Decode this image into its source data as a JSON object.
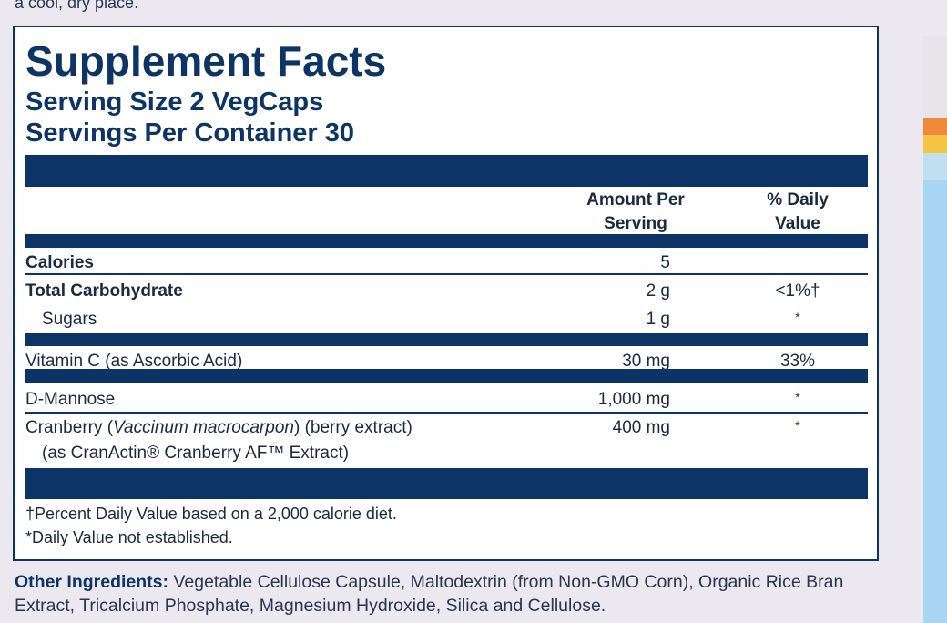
{
  "top_text": "a cool, dry place.",
  "facts": {
    "title": "Supplement Facts",
    "serving_size": "Serving Size 2 VegCaps",
    "servings_per_container": "Servings Per Container 30",
    "header": {
      "amount": [
        "Amount Per",
        "Serving"
      ],
      "daily_value": [
        "% Daily",
        "Value"
      ]
    },
    "rows": [
      {
        "name": "Calories",
        "amount": "5"
      },
      {
        "name": "Total Carbohydrate",
        "amount": "2 g",
        "daily_value": "<1%†"
      },
      {
        "name": "Sugars",
        "amount": "1 g",
        "daily_value": "*"
      },
      {
        "name": "Vitamin C (as Ascorbic Acid)",
        "amount": "30 mg",
        "daily_value": "33%"
      },
      {
        "name": "D-Mannose",
        "amount": "1,000 mg",
        "daily_value": "*"
      },
      {
        "name_pre": "Cranberry (",
        "name_italic": "Vaccinum macrocarpon",
        "name_post": ") (berry extract)",
        "detail": "(as CranActin® Cranberry AF™ Extract)",
        "amount": "400 mg",
        "daily_value": "*"
      }
    ],
    "footnotes": [
      "†Percent Daily Value based on a 2,000 calorie diet.",
      "*Daily Value not established."
    ]
  },
  "other_ingredients": {
    "label": "Other Ingredients:",
    "text": "Vegetable Cellulose Capsule, Maltodextrin (from Non-GMO Corn), Organic Rice Bran Extract, Tricalcium Phosphate, Magnesium Hydroxide, Silica and Cellulose."
  }
}
